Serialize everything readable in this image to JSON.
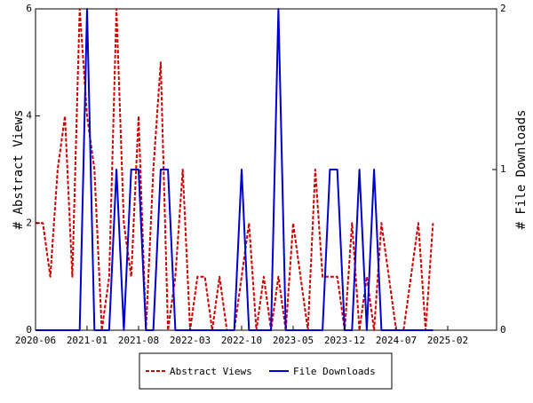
{
  "chart_data": {
    "type": "line",
    "title": "",
    "xlabel": "",
    "ylabel_left": "# Abstract Views",
    "ylabel_right": "# File Downloads",
    "x_ticks": [
      "2020-06",
      "2021-01",
      "2021-08",
      "2022-03",
      "2022-10",
      "2023-05",
      "2023-12",
      "2024-07",
      "2025-02"
    ],
    "ylim_left": [
      0,
      6
    ],
    "yticks_left": [
      "0",
      "2",
      "4",
      "6"
    ],
    "ylim_right": [
      0,
      2
    ],
    "yticks_right": [
      "0",
      "1",
      "2"
    ],
    "grid": false,
    "legend_position": "bottom-center",
    "x_start": "2020-06",
    "series": [
      {
        "name": "Abstract Views",
        "axis": "left",
        "color": "#cc0000",
        "style": "dashed",
        "values": [
          2,
          2,
          1,
          3,
          4,
          1,
          6,
          4,
          3,
          0,
          1,
          6,
          2,
          1,
          4,
          0,
          3,
          5,
          0,
          1,
          3,
          0,
          1,
          1,
          0,
          1,
          0,
          0,
          1,
          2,
          0,
          1,
          0,
          1,
          0,
          2,
          1,
          0,
          3,
          1,
          1,
          1,
          0,
          2,
          0,
          1,
          0,
          2,
          1,
          0,
          0,
          1,
          2,
          0,
          2
        ]
      },
      {
        "name": "File Downloads",
        "axis": "right",
        "color": "#0000cc",
        "style": "solid",
        "values": [
          0,
          0,
          0,
          0,
          0,
          0,
          0,
          2,
          0,
          0,
          0,
          1,
          0,
          1,
          1,
          0,
          0,
          1,
          1,
          0,
          0,
          0,
          0,
          0,
          0,
          0,
          0,
          0,
          1,
          0,
          0,
          0,
          0,
          2,
          0,
          0,
          0,
          0,
          0,
          0,
          1,
          1,
          0,
          0,
          1,
          0,
          1,
          0,
          0,
          0,
          0,
          0,
          0,
          0,
          0
        ]
      }
    ]
  }
}
